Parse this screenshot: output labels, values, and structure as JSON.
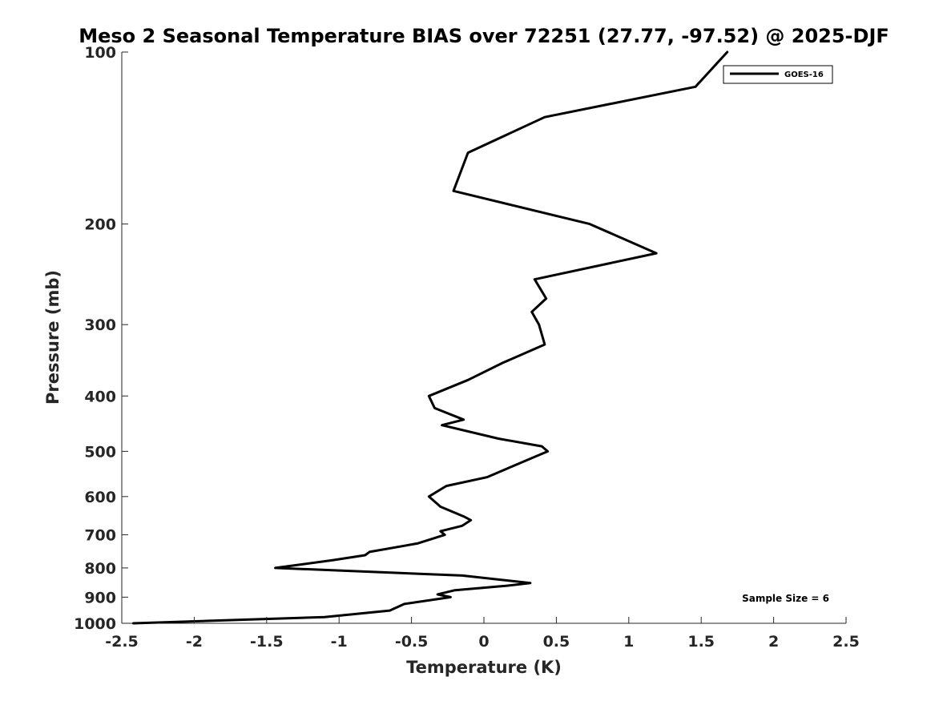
{
  "chart_data": {
    "type": "line",
    "title": "Meso 2 Seasonal Temperature BIAS over 72251 (27.77, -97.52) @ 2025-DJF",
    "xlabel": "Temperature (K)",
    "ylabel": "Pressure (mb)",
    "xlim": [
      -2.5,
      2.5
    ],
    "ylim": [
      100,
      1000
    ],
    "y_scale": "log",
    "y_reversed": true,
    "xticks": [
      -2.5,
      -2,
      -1.5,
      -1,
      -0.5,
      0,
      0.5,
      1,
      1.5,
      2,
      2.5
    ],
    "xtick_labels": [
      "-2.5",
      "-2",
      "-1.5",
      "-1",
      "-0.5",
      "0",
      "0.5",
      "1",
      "1.5",
      "2",
      "2.5"
    ],
    "yticks": [
      100,
      200,
      300,
      400,
      500,
      600,
      700,
      800,
      900,
      1000
    ],
    "ytick_labels": [
      "100",
      "200",
      "300",
      "400",
      "500",
      "600",
      "700",
      "800",
      "900",
      "1000"
    ],
    "grid": false,
    "legend_position": "top-right",
    "annotation": "Sample Size = 6",
    "series": [
      {
        "name": "GOES-16",
        "color": "#000000",
        "points": [
          [
            -2.42,
            1000
          ],
          [
            -1.1,
            975
          ],
          [
            -0.65,
            950
          ],
          [
            -0.55,
            925
          ],
          [
            -0.23,
            900
          ],
          [
            -0.32,
            890
          ],
          [
            -0.2,
            875
          ],
          [
            0.15,
            860
          ],
          [
            0.32,
            850
          ],
          [
            -0.15,
            825
          ],
          [
            -1.44,
            800
          ],
          [
            -1.04,
            775
          ],
          [
            -0.82,
            760
          ],
          [
            -0.79,
            750
          ],
          [
            -0.46,
            725
          ],
          [
            -0.27,
            700
          ],
          [
            -0.3,
            690
          ],
          [
            -0.15,
            675
          ],
          [
            -0.09,
            660
          ],
          [
            -0.14,
            650
          ],
          [
            -0.3,
            625
          ],
          [
            -0.38,
            600
          ],
          [
            -0.26,
            575
          ],
          [
            0.02,
            555
          ],
          [
            0.13,
            540
          ],
          [
            0.44,
            500
          ],
          [
            0.4,
            490
          ],
          [
            0.1,
            475
          ],
          [
            -0.29,
            450
          ],
          [
            -0.14,
            440
          ],
          [
            -0.34,
            420
          ],
          [
            -0.38,
            400
          ],
          [
            -0.11,
            375
          ],
          [
            0.13,
            350
          ],
          [
            0.42,
            325
          ],
          [
            0.38,
            300
          ],
          [
            0.33,
            285
          ],
          [
            0.43,
            270
          ],
          [
            0.35,
            250
          ],
          [
            1.19,
            225
          ],
          [
            0.73,
            200
          ],
          [
            -0.21,
            175
          ],
          [
            -0.11,
            150
          ],
          [
            0.42,
            130
          ],
          [
            1.46,
            115
          ],
          [
            1.68,
            100
          ]
        ]
      }
    ]
  }
}
